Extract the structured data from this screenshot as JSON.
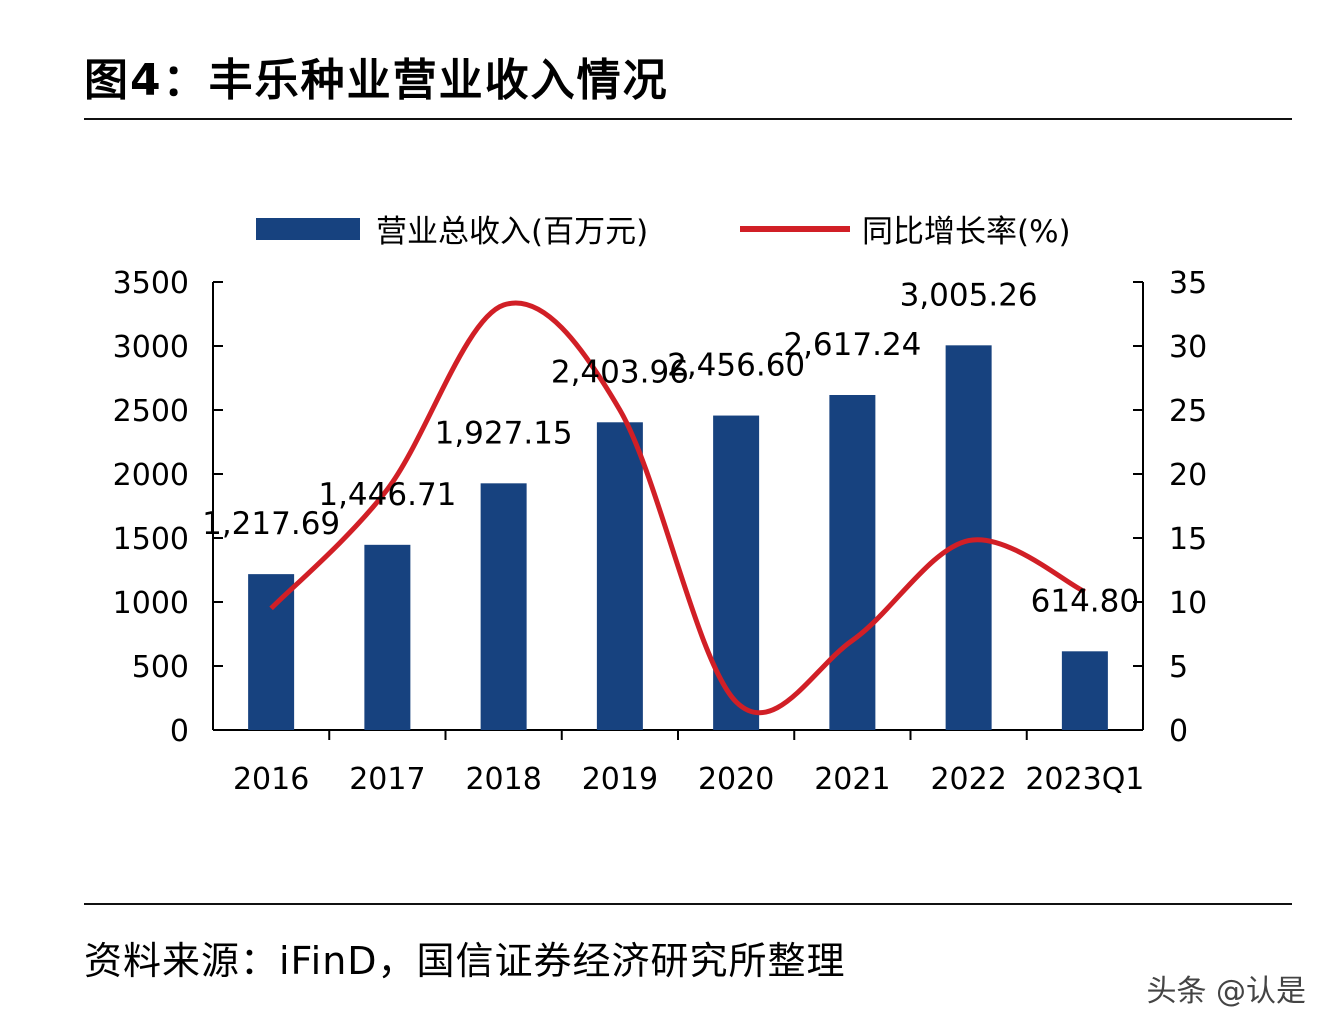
{
  "title": "图4：丰乐种业营业收入情况",
  "source": "资料来源：iFinD，国信证券经济研究所整理",
  "watermark": "头条 @认是",
  "colors": {
    "bar": "#17427f",
    "line": "#d11f26",
    "axis": "#000000"
  },
  "chart_data": {
    "type": "bar",
    "categories": [
      "2016",
      "2017",
      "2018",
      "2019",
      "2020",
      "2021",
      "2022",
      "2023Q1"
    ],
    "series": [
      {
        "name": "营业总收入(百万元)",
        "type": "bar",
        "axis": "left",
        "values": [
          1217.69,
          1446.71,
          1927.15,
          2403.96,
          2456.6,
          2617.24,
          3005.26,
          614.8
        ]
      },
      {
        "name": "同比增长率(%)",
        "type": "line",
        "axis": "right",
        "values": [
          9.5,
          18.8,
          33.2,
          25.0,
          2.2,
          7.0,
          14.8,
          10.8
        ]
      }
    ],
    "data_labels": [
      "1,217.69",
      "1,446.71",
      "1,927.15",
      "2,403.96",
      "2,456.60",
      "2,617.24",
      "3,005.26",
      "614.80"
    ],
    "y_left": {
      "lim": [
        0,
        3500
      ],
      "ticks": [
        "0",
        "500",
        "1000",
        "1500",
        "2000",
        "2500",
        "3000",
        "3500"
      ]
    },
    "y_right": {
      "lim": [
        0,
        35
      ],
      "ticks": [
        "0",
        "5",
        "10",
        "15",
        "20",
        "25",
        "30",
        "35"
      ]
    },
    "legend_position": "top",
    "grid": false
  }
}
